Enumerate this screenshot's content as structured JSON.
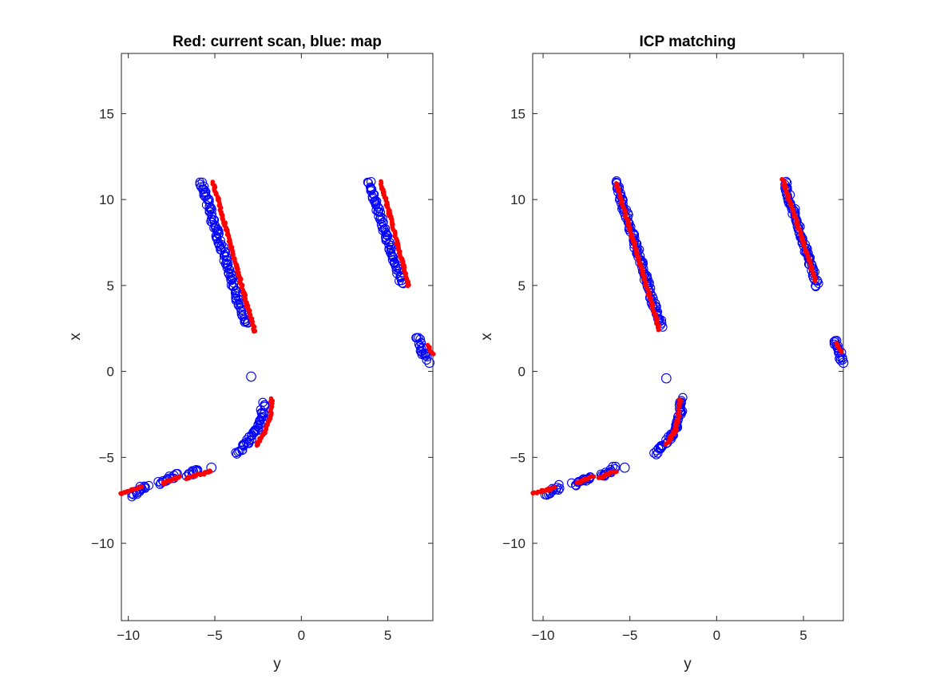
{
  "chart_data": [
    {
      "type": "scatter",
      "title": "Red: current scan, blue: map",
      "xlabel": "y",
      "ylabel": "x",
      "xlim": [
        -10.4,
        7.6
      ],
      "ylim": [
        -14.5,
        18.5
      ],
      "xticks": [
        -10,
        -5,
        0,
        5
      ],
      "yticks": [
        -10,
        -5,
        0,
        5,
        10,
        15
      ],
      "grid": false,
      "series": [
        {
          "color": "#0000ff",
          "marker": "circle-open",
          "segments": [
            [
              [
                -5.8,
                11.0
              ],
              [
                -3.2,
                2.7
              ]
            ],
            [
              [
                3.9,
                11.0
              ],
              [
                5.8,
                5.1
              ]
            ],
            [
              [
                -2.2,
                -1.9
              ],
              [
                -2.3,
                -2.7
              ],
              [
                -2.6,
                -3.5
              ],
              [
                -3.2,
                -4.2
              ],
              [
                -3.7,
                -4.8
              ]
            ],
            [
              [
                6.7,
                2.0
              ],
              [
                7.2,
                0.7
              ]
            ],
            [
              [
                -9.8,
                -7.2
              ],
              [
                -8.9,
                -6.6
              ]
            ],
            [
              [
                -8.2,
                -6.5
              ],
              [
                -7.2,
                -6.0
              ]
            ],
            [
              [
                -6.6,
                -6.1
              ],
              [
                -5.9,
                -5.7
              ]
            ]
          ],
          "points": [
            [
              -2.9,
              -0.3
            ],
            [
              -5.2,
              -5.6
            ],
            [
              7.4,
              0.5
            ]
          ]
        },
        {
          "color": "#ff0000",
          "marker": "dot",
          "segments": [
            [
              [
                -5.1,
                11.0
              ],
              [
                -2.7,
                2.3
              ]
            ],
            [
              [
                4.6,
                11.0
              ],
              [
                6.2,
                5.0
              ]
            ],
            [
              [
                -1.7,
                -1.6
              ],
              [
                -1.8,
                -2.6
              ],
              [
                -2.1,
                -3.5
              ],
              [
                -2.6,
                -4.3
              ]
            ],
            [
              [
                7.3,
                1.5
              ],
              [
                7.6,
                1.0
              ]
            ],
            [
              [
                -10.4,
                -7.1
              ],
              [
                -9.2,
                -6.7
              ]
            ],
            [
              [
                -8.0,
                -6.5
              ],
              [
                -7.0,
                -6.1
              ]
            ],
            [
              [
                -6.6,
                -6.2
              ],
              [
                -5.2,
                -5.8
              ]
            ]
          ],
          "points": []
        }
      ]
    },
    {
      "type": "scatter",
      "title": "ICP matching",
      "xlabel": "y",
      "ylabel": "x",
      "xlim": [
        -10.6,
        7.3
      ],
      "ylim": [
        -14.5,
        18.5
      ],
      "xticks": [
        -10,
        -5,
        0,
        5
      ],
      "yticks": [
        -10,
        -5,
        0,
        5,
        10,
        15
      ],
      "grid": false,
      "series": [
        {
          "color": "#0000ff",
          "marker": "circle-open",
          "segments": [
            [
              [
                -5.8,
                11.0
              ],
              [
                -3.2,
                2.6
              ]
            ],
            [
              [
                3.9,
                11.0
              ],
              [
                5.8,
                5.0
              ]
            ],
            [
              [
                -2.0,
                -1.6
              ],
              [
                -2.1,
                -2.6
              ],
              [
                -2.5,
                -3.6
              ],
              [
                -3.1,
                -4.3
              ],
              [
                -3.5,
                -4.8
              ]
            ],
            [
              [
                6.8,
                1.9
              ],
              [
                7.2,
                0.6
              ]
            ],
            [
              [
                -9.9,
                -7.2
              ],
              [
                -9.0,
                -6.7
              ]
            ],
            [
              [
                -8.3,
                -6.6
              ],
              [
                -7.2,
                -6.1
              ]
            ],
            [
              [
                -6.7,
                -6.1
              ],
              [
                -5.8,
                -5.6
              ]
            ]
          ],
          "points": [
            [
              -2.9,
              -0.4
            ],
            [
              -5.3,
              -5.6
            ],
            [
              7.3,
              0.5
            ]
          ]
        },
        {
          "color": "#ff0000",
          "marker": "dot",
          "segments": [
            [
              [
                -5.8,
                11.0
              ],
              [
                -3.3,
                2.4
              ]
            ],
            [
              [
                3.8,
                11.2
              ],
              [
                5.7,
                5.3
              ]
            ],
            [
              [
                -2.1,
                -1.6
              ],
              [
                -2.2,
                -2.6
              ],
              [
                -2.4,
                -3.5
              ],
              [
                -2.9,
                -4.2
              ]
            ],
            [
              [
                6.9,
                1.6
              ],
              [
                7.2,
                1.1
              ]
            ],
            [
              [
                -10.6,
                -7.1
              ],
              [
                -9.4,
                -6.8
              ]
            ],
            [
              [
                -8.1,
                -6.5
              ],
              [
                -7.1,
                -6.1
              ]
            ],
            [
              [
                -6.8,
                -6.2
              ],
              [
                -5.8,
                -5.8
              ]
            ]
          ],
          "points": []
        }
      ]
    }
  ]
}
